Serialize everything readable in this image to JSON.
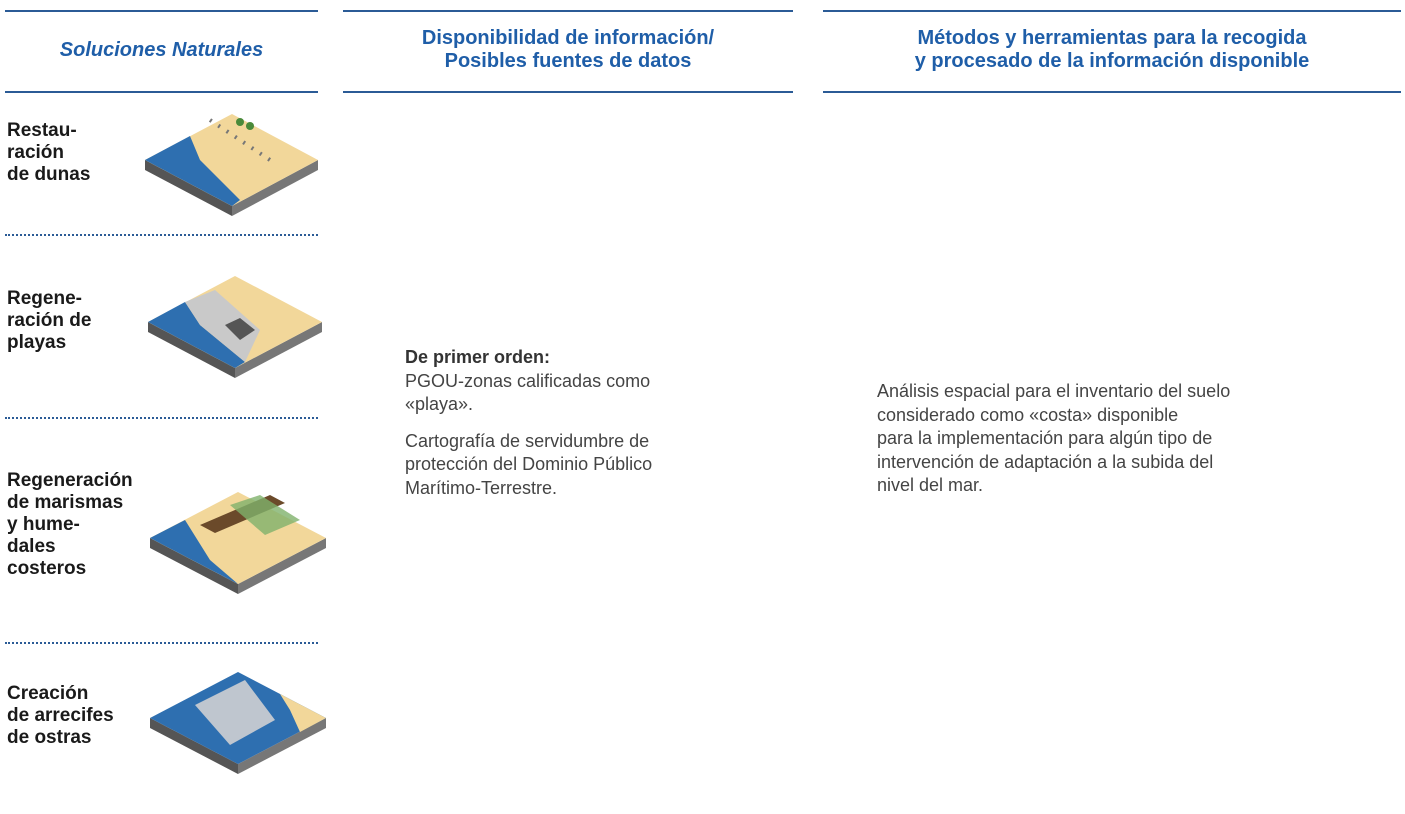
{
  "headers": {
    "col1": "Soluciones Naturales",
    "col2": [
      "Disponibilidad de información/",
      "Posibles fuentes de datos"
    ],
    "col3": [
      "Métodos y herramientas para la recogida",
      "y procesado de la información disponible"
    ]
  },
  "solutions": [
    {
      "label": [
        "Restau-",
        "ración",
        "de dunas"
      ]
    },
    {
      "label": [
        "Regene-",
        "ración de",
        "playas"
      ]
    },
    {
      "label": [
        "Regeneración",
        "de marismas",
        "y hume-",
        "dales",
        "costeros"
      ]
    },
    {
      "label": [
        "Creación",
        "de arrecifes",
        "de ostras"
      ]
    }
  ],
  "sources": {
    "heading": "De primer orden:",
    "paragraphs": [
      [
        "PGOU-zonas calificadas como",
        "«playa»."
      ],
      [
        "Cartografía de servidumbre de",
        "protección del Dominio Público",
        "Marítimo-Terrestre."
      ]
    ]
  },
  "methods": [
    "Análisis espacial para el inventario del suelo",
    "considerado como «costa» disponible",
    "para la implementación para algún tipo de",
    "intervención de adaptación a la subida del",
    "nivel del mar."
  ]
}
